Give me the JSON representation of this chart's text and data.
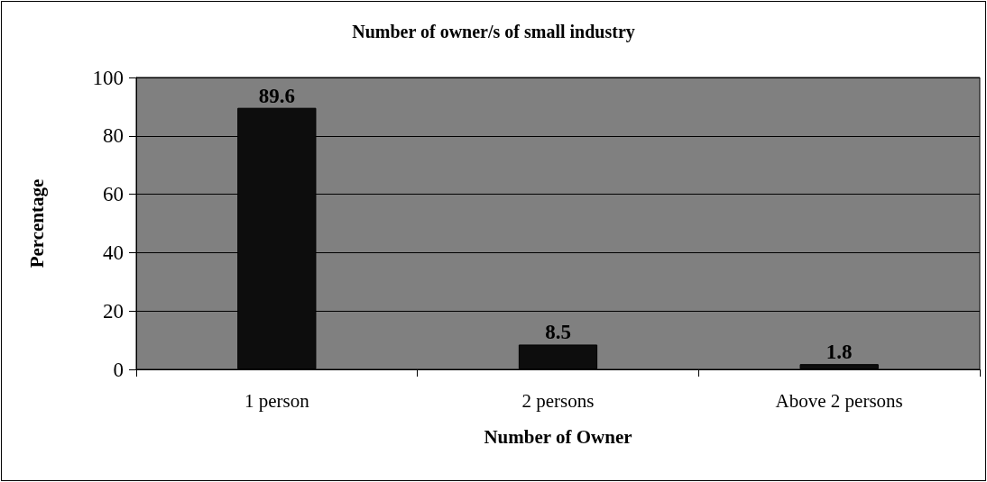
{
  "chart_data": {
    "type": "bar",
    "title": "Number of owner/s of small industry",
    "xlabel": "Number of Owner",
    "ylabel": "Percentage",
    "categories": [
      "1 person",
      "2 persons",
      "Above 2 persons"
    ],
    "values": [
      89.6,
      8.5,
      1.8
    ],
    "color": "#0d0d0d",
    "ylim": [
      0,
      100
    ],
    "yticks": [
      0,
      20,
      40,
      60,
      80,
      100
    ],
    "grid": "y",
    "data_labels": true
  }
}
